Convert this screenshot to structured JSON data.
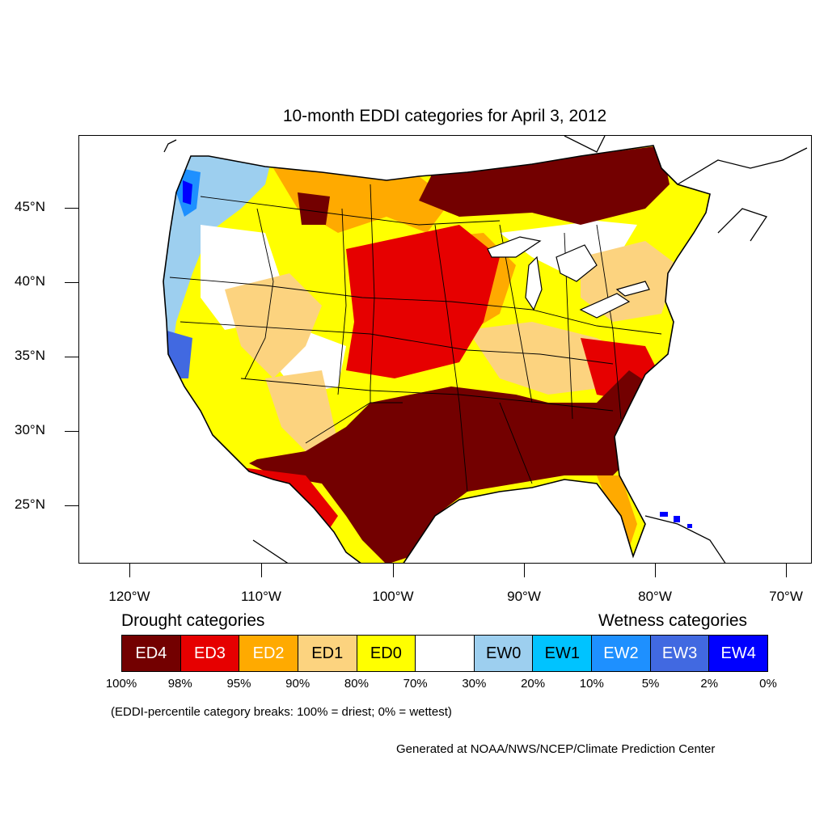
{
  "title": "10-month EDDI categories for April 3, 2012",
  "axes": {
    "lat_labels": [
      "45°N",
      "40°N",
      "35°N",
      "30°N",
      "25°N"
    ],
    "lon_labels": [
      "120°W",
      "110°W",
      "100°W",
      "90°W",
      "80°W",
      "70°W"
    ]
  },
  "legend": {
    "drought_heading": "Drought categories",
    "wetness_heading": "Wetness categories",
    "categories": [
      {
        "label": "ED4",
        "color": "#730000",
        "text_color": "#ffffff"
      },
      {
        "label": "ED3",
        "color": "#e60000",
        "text_color": "#ffffff"
      },
      {
        "label": "ED2",
        "color": "#ffaa00",
        "text_color": "#ffffff"
      },
      {
        "label": "ED1",
        "color": "#fcd37f",
        "text_color": "#000000"
      },
      {
        "label": "ED0",
        "color": "#ffff00",
        "text_color": "#000000"
      },
      {
        "label": "",
        "color": "#ffffff",
        "text_color": "#000000"
      },
      {
        "label": "EW0",
        "color": "#9dcfef",
        "text_color": "#000000"
      },
      {
        "label": "EW1",
        "color": "#00c3ff",
        "text_color": "#000000"
      },
      {
        "label": "EW2",
        "color": "#1e90ff",
        "text_color": "#ffffff"
      },
      {
        "label": "EW3",
        "color": "#4169e1",
        "text_color": "#ffffff"
      },
      {
        "label": "EW4",
        "color": "#0000ff",
        "text_color": "#ffffff"
      }
    ],
    "breaks": [
      "100%",
      "98%",
      "95%",
      "90%",
      "80%",
      "70%",
      "30%",
      "20%",
      "10%",
      "5%",
      "2%",
      "0%"
    ]
  },
  "note": "(EDDI-percentile category breaks: 100% = driest; 0% = wettest)",
  "credit": "Generated at NOAA/NWS/NCEP/Climate Prediction Center"
}
